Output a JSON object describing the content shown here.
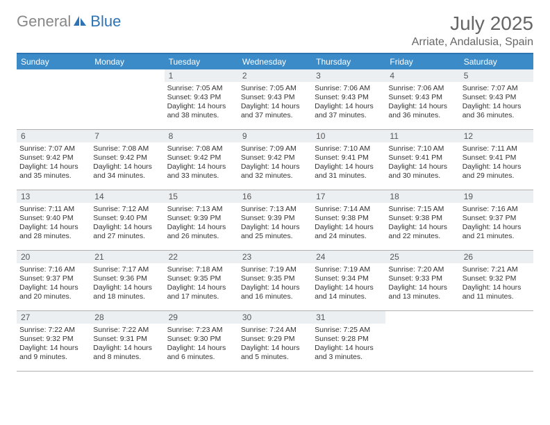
{
  "logo": {
    "text_gray": "General",
    "text_blue": "Blue",
    "icon_color": "#2e74b5"
  },
  "title": "July 2025",
  "location": "Arriate, Andalusia, Spain",
  "header_bg": "#3b8bc9",
  "header_border": "#2e74b5",
  "daynum_bg": "#eceff2",
  "weekdays": [
    "Sunday",
    "Monday",
    "Tuesday",
    "Wednesday",
    "Thursday",
    "Friday",
    "Saturday"
  ],
  "weeks": [
    [
      {
        "n": "",
        "sr": "",
        "ss": "",
        "dl": ""
      },
      {
        "n": "",
        "sr": "",
        "ss": "",
        "dl": ""
      },
      {
        "n": "1",
        "sr": "Sunrise: 7:05 AM",
        "ss": "Sunset: 9:43 PM",
        "dl": "Daylight: 14 hours and 38 minutes."
      },
      {
        "n": "2",
        "sr": "Sunrise: 7:05 AM",
        "ss": "Sunset: 9:43 PM",
        "dl": "Daylight: 14 hours and 37 minutes."
      },
      {
        "n": "3",
        "sr": "Sunrise: 7:06 AM",
        "ss": "Sunset: 9:43 PM",
        "dl": "Daylight: 14 hours and 37 minutes."
      },
      {
        "n": "4",
        "sr": "Sunrise: 7:06 AM",
        "ss": "Sunset: 9:43 PM",
        "dl": "Daylight: 14 hours and 36 minutes."
      },
      {
        "n": "5",
        "sr": "Sunrise: 7:07 AM",
        "ss": "Sunset: 9:43 PM",
        "dl": "Daylight: 14 hours and 36 minutes."
      }
    ],
    [
      {
        "n": "6",
        "sr": "Sunrise: 7:07 AM",
        "ss": "Sunset: 9:42 PM",
        "dl": "Daylight: 14 hours and 35 minutes."
      },
      {
        "n": "7",
        "sr": "Sunrise: 7:08 AM",
        "ss": "Sunset: 9:42 PM",
        "dl": "Daylight: 14 hours and 34 minutes."
      },
      {
        "n": "8",
        "sr": "Sunrise: 7:08 AM",
        "ss": "Sunset: 9:42 PM",
        "dl": "Daylight: 14 hours and 33 minutes."
      },
      {
        "n": "9",
        "sr": "Sunrise: 7:09 AM",
        "ss": "Sunset: 9:42 PM",
        "dl": "Daylight: 14 hours and 32 minutes."
      },
      {
        "n": "10",
        "sr": "Sunrise: 7:10 AM",
        "ss": "Sunset: 9:41 PM",
        "dl": "Daylight: 14 hours and 31 minutes."
      },
      {
        "n": "11",
        "sr": "Sunrise: 7:10 AM",
        "ss": "Sunset: 9:41 PM",
        "dl": "Daylight: 14 hours and 30 minutes."
      },
      {
        "n": "12",
        "sr": "Sunrise: 7:11 AM",
        "ss": "Sunset: 9:41 PM",
        "dl": "Daylight: 14 hours and 29 minutes."
      }
    ],
    [
      {
        "n": "13",
        "sr": "Sunrise: 7:11 AM",
        "ss": "Sunset: 9:40 PM",
        "dl": "Daylight: 14 hours and 28 minutes."
      },
      {
        "n": "14",
        "sr": "Sunrise: 7:12 AM",
        "ss": "Sunset: 9:40 PM",
        "dl": "Daylight: 14 hours and 27 minutes."
      },
      {
        "n": "15",
        "sr": "Sunrise: 7:13 AM",
        "ss": "Sunset: 9:39 PM",
        "dl": "Daylight: 14 hours and 26 minutes."
      },
      {
        "n": "16",
        "sr": "Sunrise: 7:13 AM",
        "ss": "Sunset: 9:39 PM",
        "dl": "Daylight: 14 hours and 25 minutes."
      },
      {
        "n": "17",
        "sr": "Sunrise: 7:14 AM",
        "ss": "Sunset: 9:38 PM",
        "dl": "Daylight: 14 hours and 24 minutes."
      },
      {
        "n": "18",
        "sr": "Sunrise: 7:15 AM",
        "ss": "Sunset: 9:38 PM",
        "dl": "Daylight: 14 hours and 22 minutes."
      },
      {
        "n": "19",
        "sr": "Sunrise: 7:16 AM",
        "ss": "Sunset: 9:37 PM",
        "dl": "Daylight: 14 hours and 21 minutes."
      }
    ],
    [
      {
        "n": "20",
        "sr": "Sunrise: 7:16 AM",
        "ss": "Sunset: 9:37 PM",
        "dl": "Daylight: 14 hours and 20 minutes."
      },
      {
        "n": "21",
        "sr": "Sunrise: 7:17 AM",
        "ss": "Sunset: 9:36 PM",
        "dl": "Daylight: 14 hours and 18 minutes."
      },
      {
        "n": "22",
        "sr": "Sunrise: 7:18 AM",
        "ss": "Sunset: 9:35 PM",
        "dl": "Daylight: 14 hours and 17 minutes."
      },
      {
        "n": "23",
        "sr": "Sunrise: 7:19 AM",
        "ss": "Sunset: 9:35 PM",
        "dl": "Daylight: 14 hours and 16 minutes."
      },
      {
        "n": "24",
        "sr": "Sunrise: 7:19 AM",
        "ss": "Sunset: 9:34 PM",
        "dl": "Daylight: 14 hours and 14 minutes."
      },
      {
        "n": "25",
        "sr": "Sunrise: 7:20 AM",
        "ss": "Sunset: 9:33 PM",
        "dl": "Daylight: 14 hours and 13 minutes."
      },
      {
        "n": "26",
        "sr": "Sunrise: 7:21 AM",
        "ss": "Sunset: 9:32 PM",
        "dl": "Daylight: 14 hours and 11 minutes."
      }
    ],
    [
      {
        "n": "27",
        "sr": "Sunrise: 7:22 AM",
        "ss": "Sunset: 9:32 PM",
        "dl": "Daylight: 14 hours and 9 minutes."
      },
      {
        "n": "28",
        "sr": "Sunrise: 7:22 AM",
        "ss": "Sunset: 9:31 PM",
        "dl": "Daylight: 14 hours and 8 minutes."
      },
      {
        "n": "29",
        "sr": "Sunrise: 7:23 AM",
        "ss": "Sunset: 9:30 PM",
        "dl": "Daylight: 14 hours and 6 minutes."
      },
      {
        "n": "30",
        "sr": "Sunrise: 7:24 AM",
        "ss": "Sunset: 9:29 PM",
        "dl": "Daylight: 14 hours and 5 minutes."
      },
      {
        "n": "31",
        "sr": "Sunrise: 7:25 AM",
        "ss": "Sunset: 9:28 PM",
        "dl": "Daylight: 14 hours and 3 minutes."
      },
      {
        "n": "",
        "sr": "",
        "ss": "",
        "dl": ""
      },
      {
        "n": "",
        "sr": "",
        "ss": "",
        "dl": ""
      }
    ]
  ]
}
